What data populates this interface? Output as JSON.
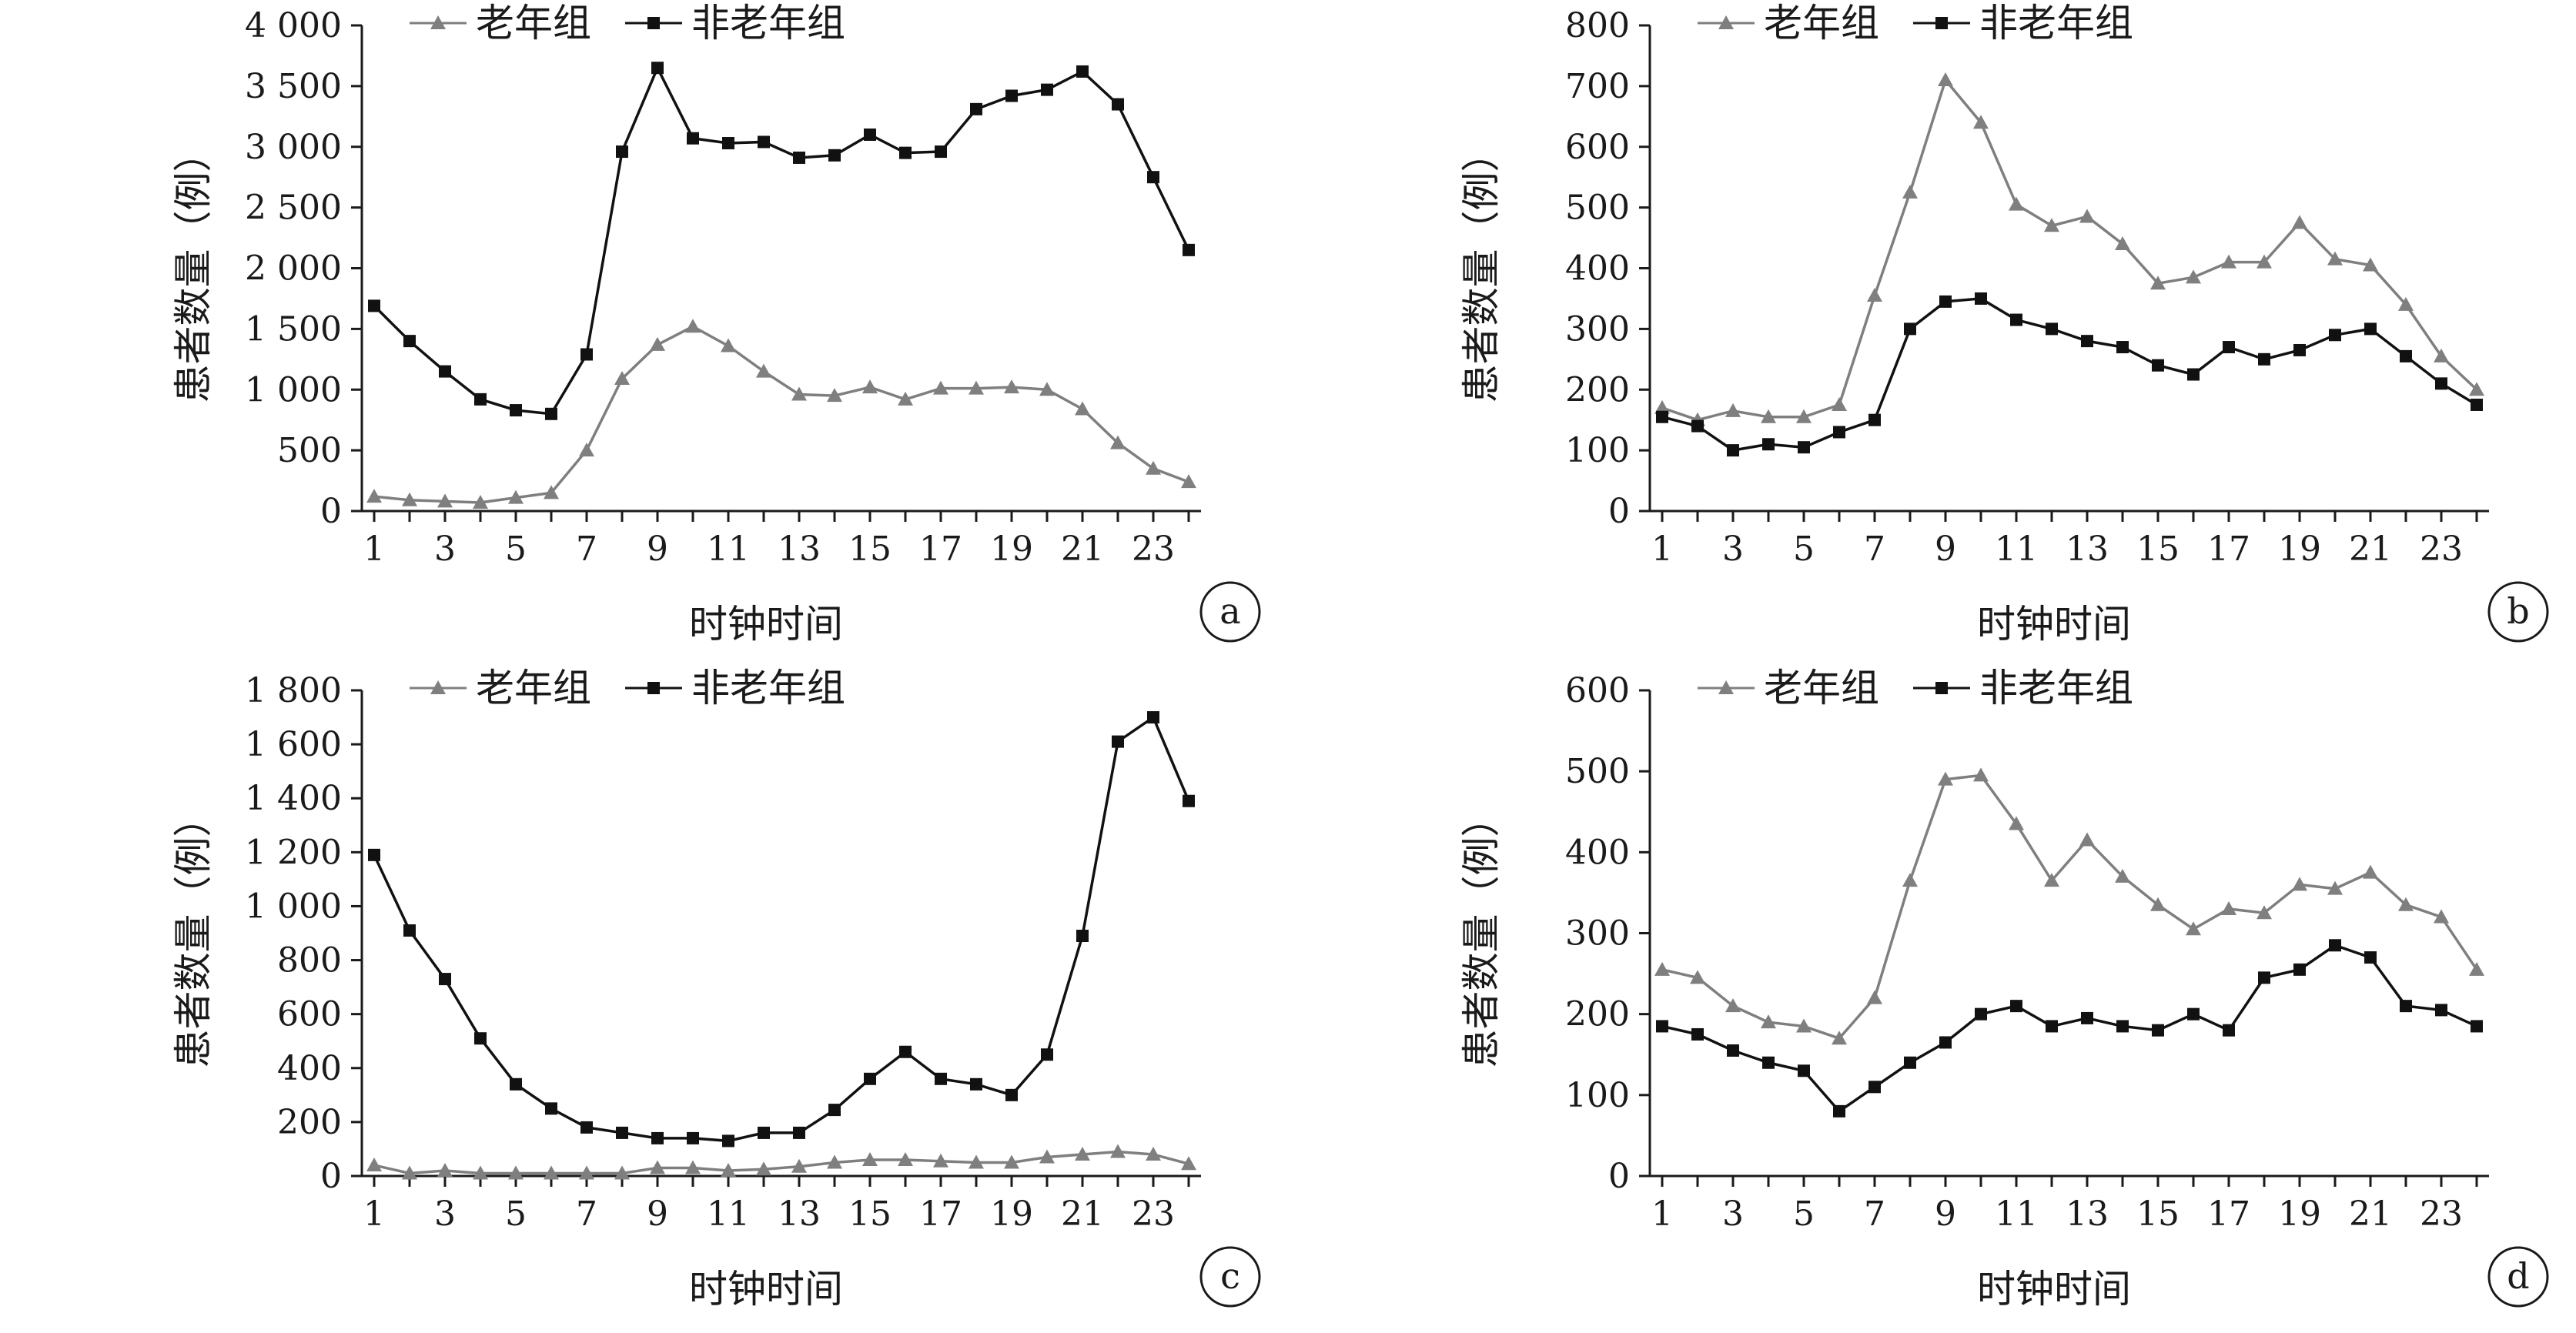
{
  "colors": {
    "elderly": "#7f7f7f",
    "non_elderly": "#111111",
    "axis": "#1a1a1a"
  },
  "chart_data": [
    {
      "panel": "a",
      "type": "line",
      "xlabel": "时钟时间",
      "ylabel": "患者数量（例）",
      "x": [
        1,
        2,
        3,
        4,
        5,
        6,
        7,
        8,
        9,
        10,
        11,
        12,
        13,
        14,
        15,
        16,
        17,
        18,
        19,
        20,
        21,
        22,
        23,
        24
      ],
      "x_ticks": [
        1,
        3,
        5,
        7,
        9,
        11,
        13,
        15,
        17,
        19,
        21,
        23
      ],
      "ylim": [
        0,
        4000
      ],
      "y_ticks": [
        0,
        500,
        1000,
        1500,
        2000,
        2500,
        3000,
        3500,
        4000
      ],
      "y_tick_labels": [
        "0",
        "500",
        "1 000",
        "1 500",
        "2 000",
        "2 500",
        "3 000",
        "3 500",
        "4 000"
      ],
      "legend": [
        "老年组",
        "非老年组"
      ],
      "series": [
        {
          "name": "老年组",
          "marker": "triangle",
          "values": [
            120,
            90,
            80,
            70,
            110,
            150,
            500,
            1090,
            1370,
            1520,
            1360,
            1150,
            960,
            950,
            1020,
            920,
            1010,
            1010,
            1020,
            1000,
            840,
            560,
            350,
            240
          ]
        },
        {
          "name": "非老年组",
          "marker": "square",
          "values": [
            1690,
            1400,
            1150,
            920,
            830,
            800,
            1290,
            2960,
            3650,
            3070,
            3030,
            3040,
            2910,
            2930,
            3100,
            2950,
            2960,
            3310,
            3420,
            3470,
            3620,
            3350,
            2750,
            2150
          ]
        }
      ]
    },
    {
      "panel": "b",
      "type": "line",
      "xlabel": "时钟时间",
      "ylabel": "患者数量（例）",
      "x": [
        1,
        2,
        3,
        4,
        5,
        6,
        7,
        8,
        9,
        10,
        11,
        12,
        13,
        14,
        15,
        16,
        17,
        18,
        19,
        20,
        21,
        22,
        23,
        24
      ],
      "x_ticks": [
        1,
        3,
        5,
        7,
        9,
        11,
        13,
        15,
        17,
        19,
        21,
        23
      ],
      "ylim": [
        0,
        800
      ],
      "y_ticks": [
        0,
        100,
        200,
        300,
        400,
        500,
        600,
        700,
        800
      ],
      "y_tick_labels": [
        "0",
        "100",
        "200",
        "300",
        "400",
        "500",
        "600",
        "700",
        "800"
      ],
      "legend": [
        "老年组",
        "非老年组"
      ],
      "series": [
        {
          "name": "老年组",
          "marker": "triangle",
          "values": [
            170,
            150,
            165,
            155,
            155,
            175,
            355,
            525,
            710,
            640,
            505,
            470,
            485,
            440,
            375,
            385,
            410,
            410,
            475,
            415,
            405,
            340,
            255,
            200
          ]
        },
        {
          "name": "非老年组",
          "marker": "square",
          "values": [
            155,
            140,
            100,
            110,
            105,
            130,
            150,
            300,
            345,
            350,
            315,
            300,
            280,
            270,
            240,
            225,
            270,
            250,
            265,
            290,
            300,
            255,
            210,
            175
          ]
        }
      ]
    },
    {
      "panel": "c",
      "type": "line",
      "xlabel": "时钟时间",
      "ylabel": "患者数量（例）",
      "x": [
        1,
        2,
        3,
        4,
        5,
        6,
        7,
        8,
        9,
        10,
        11,
        12,
        13,
        14,
        15,
        16,
        17,
        18,
        19,
        20,
        21,
        22,
        23,
        24
      ],
      "x_ticks": [
        1,
        3,
        5,
        7,
        9,
        11,
        13,
        15,
        17,
        19,
        21,
        23
      ],
      "ylim": [
        0,
        1800
      ],
      "y_ticks": [
        0,
        200,
        400,
        600,
        800,
        1000,
        1200,
        1400,
        1600,
        1800
      ],
      "y_tick_labels": [
        "0",
        "200",
        "400",
        "600",
        "800",
        "1 000",
        "1 200",
        "1 400",
        "1 600",
        "1 800"
      ],
      "legend": [
        "老年组",
        "非老年组"
      ],
      "series": [
        {
          "name": "老年组",
          "marker": "triangle",
          "values": [
            40,
            10,
            20,
            10,
            10,
            10,
            10,
            10,
            30,
            30,
            20,
            25,
            35,
            50,
            60,
            60,
            55,
            50,
            50,
            70,
            80,
            90,
            80,
            45
          ]
        },
        {
          "name": "非老年组",
          "marker": "square",
          "values": [
            1190,
            910,
            730,
            510,
            340,
            250,
            180,
            160,
            140,
            140,
            130,
            160,
            160,
            245,
            360,
            460,
            360,
            340,
            300,
            450,
            890,
            1610,
            1700,
            1390
          ]
        }
      ]
    },
    {
      "panel": "d",
      "type": "line",
      "xlabel": "时钟时间",
      "ylabel": "患者数量（例）",
      "x": [
        1,
        2,
        3,
        4,
        5,
        6,
        7,
        8,
        9,
        10,
        11,
        12,
        13,
        14,
        15,
        16,
        17,
        18,
        19,
        20,
        21,
        22,
        23,
        24
      ],
      "x_ticks": [
        1,
        3,
        5,
        7,
        9,
        11,
        13,
        15,
        17,
        19,
        21,
        23
      ],
      "ylim": [
        0,
        600
      ],
      "y_ticks": [
        0,
        100,
        200,
        300,
        400,
        500,
        600
      ],
      "y_tick_labels": [
        "0",
        "100",
        "200",
        "300",
        "400",
        "500",
        "600"
      ],
      "legend": [
        "老年组",
        "非老年组"
      ],
      "series": [
        {
          "name": "老年组",
          "marker": "triangle",
          "values": [
            255,
            245,
            210,
            190,
            185,
            170,
            220,
            365,
            490,
            495,
            435,
            365,
            415,
            370,
            335,
            305,
            330,
            325,
            360,
            355,
            375,
            335,
            320,
            255
          ]
        },
        {
          "name": "非老年组",
          "marker": "square",
          "values": [
            185,
            175,
            155,
            140,
            130,
            80,
            110,
            140,
            165,
            200,
            210,
            185,
            195,
            185,
            180,
            200,
            180,
            245,
            255,
            285,
            270,
            210,
            205,
            185
          ]
        }
      ]
    }
  ]
}
